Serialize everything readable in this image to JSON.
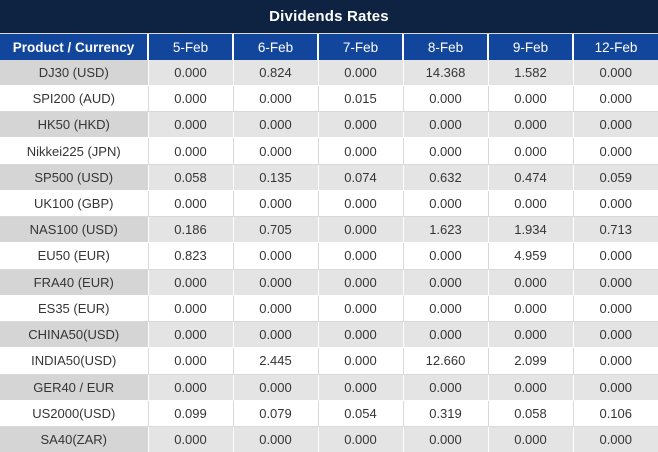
{
  "title": "Dividends Rates",
  "colors": {
    "title_bar_bg": "#0e2341",
    "header_bg": "#12459c",
    "row_gray_label": "#d5d5d5",
    "row_gray_value": "#e4e4e4",
    "row_white": "#ffffff",
    "value_black": "#353535",
    "value_red": "#ff0000",
    "header_text": "#ffffff"
  },
  "table": {
    "corner_header": "Product / Currency",
    "date_headers": [
      "5-Feb",
      "6-Feb",
      "7-Feb",
      "8-Feb",
      "9-Feb",
      "12-Feb"
    ],
    "rows": [
      {
        "product": "DJ30 (USD)",
        "values": [
          "0.000",
          "0.824",
          "0.000",
          "14.368",
          "1.582",
          "0.000"
        ],
        "red": [
          false,
          true,
          false,
          true,
          true,
          false
        ]
      },
      {
        "product": "SPI200 (AUD)",
        "values": [
          "0.000",
          "0.000",
          "0.015",
          "0.000",
          "0.000",
          "0.000"
        ],
        "red": [
          false,
          false,
          true,
          false,
          false,
          false
        ]
      },
      {
        "product": "HK50 (HKD)",
        "values": [
          "0.000",
          "0.000",
          "0.000",
          "0.000",
          "0.000",
          "0.000"
        ],
        "red": [
          false,
          false,
          false,
          false,
          false,
          false
        ]
      },
      {
        "product": "Nikkei225 (JPN)",
        "values": [
          "0.000",
          "0.000",
          "0.000",
          "0.000",
          "0.000",
          "0.000"
        ],
        "red": [
          false,
          false,
          false,
          false,
          false,
          false
        ]
      },
      {
        "product": "SP500 (USD)",
        "values": [
          "0.058",
          "0.135",
          "0.074",
          "0.632",
          "0.474",
          "0.059"
        ],
        "red": [
          true,
          true,
          true,
          true,
          true,
          true
        ]
      },
      {
        "product": "UK100 (GBP)",
        "values": [
          "0.000",
          "0.000",
          "0.000",
          "0.000",
          "0.000",
          "0.000"
        ],
        "red": [
          false,
          false,
          false,
          false,
          false,
          false
        ]
      },
      {
        "product": "NAS100 (USD)",
        "values": [
          "0.186",
          "0.705",
          "0.000",
          "1.623",
          "1.934",
          "0.713"
        ],
        "red": [
          true,
          true,
          false,
          true,
          true,
          true
        ]
      },
      {
        "product": "EU50 (EUR)",
        "values": [
          "0.823",
          "0.000",
          "0.000",
          "0.000",
          "4.959",
          "0.000"
        ],
        "red": [
          true,
          false,
          false,
          false,
          true,
          false
        ]
      },
      {
        "product": "FRA40 (EUR)",
        "values": [
          "0.000",
          "0.000",
          "0.000",
          "0.000",
          "0.000",
          "0.000"
        ],
        "red": [
          false,
          false,
          false,
          false,
          false,
          false
        ]
      },
      {
        "product": "ES35 (EUR)",
        "values": [
          "0.000",
          "0.000",
          "0.000",
          "0.000",
          "0.000",
          "0.000"
        ],
        "red": [
          false,
          false,
          false,
          false,
          false,
          false
        ]
      },
      {
        "product": "CHINA50(USD)",
        "values": [
          "0.000",
          "0.000",
          "0.000",
          "0.000",
          "0.000",
          "0.000"
        ],
        "red": [
          false,
          false,
          false,
          false,
          false,
          false
        ]
      },
      {
        "product": "INDIA50(USD)",
        "values": [
          "0.000",
          "2.445",
          "0.000",
          "12.660",
          "2.099",
          "0.000"
        ],
        "red": [
          false,
          true,
          false,
          true,
          true,
          false
        ]
      },
      {
        "product": "GER40 / EUR",
        "values": [
          "0.000",
          "0.000",
          "0.000",
          "0.000",
          "0.000",
          "0.000"
        ],
        "red": [
          false,
          false,
          false,
          false,
          false,
          false
        ]
      },
      {
        "product": "US2000(USD)",
        "values": [
          "0.099",
          "0.079",
          "0.054",
          "0.319",
          "0.058",
          "0.106"
        ],
        "red": [
          true,
          true,
          true,
          true,
          true,
          true
        ]
      },
      {
        "product": "SA40(ZAR)",
        "values": [
          "0.000",
          "0.000",
          "0.000",
          "0.000",
          "0.000",
          "0.000"
        ],
        "red": [
          false,
          false,
          false,
          false,
          false,
          false
        ]
      }
    ]
  }
}
